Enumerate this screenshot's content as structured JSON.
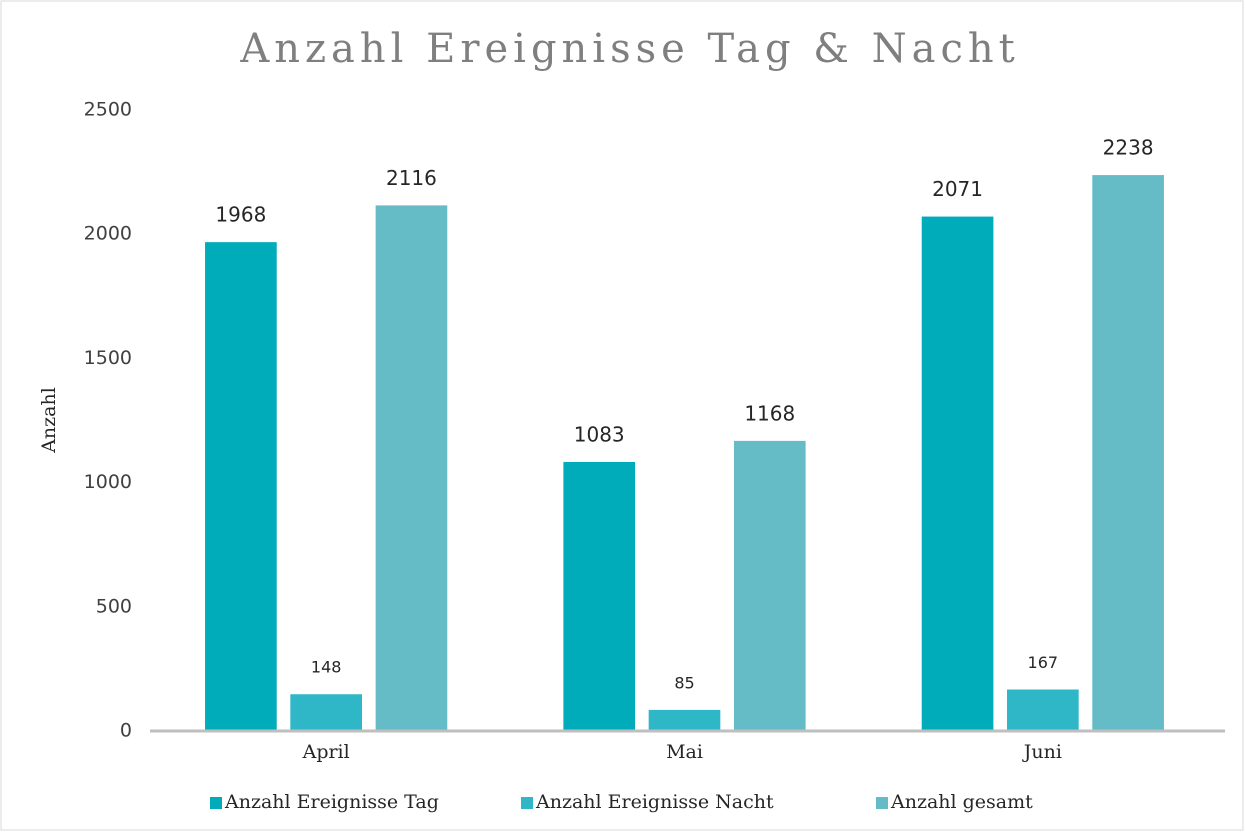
{
  "chart_data": {
    "type": "bar",
    "title": "Anzahl Ereignisse Tag & Nacht",
    "y_label": "Anzahl",
    "categories": [
      "April",
      "Mai",
      "Juni"
    ],
    "series": [
      {
        "name": "Anzahl Ereignisse Tag",
        "color": "#00abba",
        "values": [
          1968,
          1083,
          2071
        ]
      },
      {
        "name": "Anzahl Ereignisse Nacht",
        "color": "#30b7c7",
        "values": [
          148,
          85,
          167
        ]
      },
      {
        "name": "Anzahl gesamt",
        "color": "#66bcc6",
        "values": [
          2116,
          1168,
          2238
        ]
      }
    ],
    "ylim": [
      0,
      2500
    ],
    "yticks": [
      0,
      500,
      1000,
      1500,
      2000,
      2500
    ],
    "grid": false,
    "legend": "bottom"
  }
}
